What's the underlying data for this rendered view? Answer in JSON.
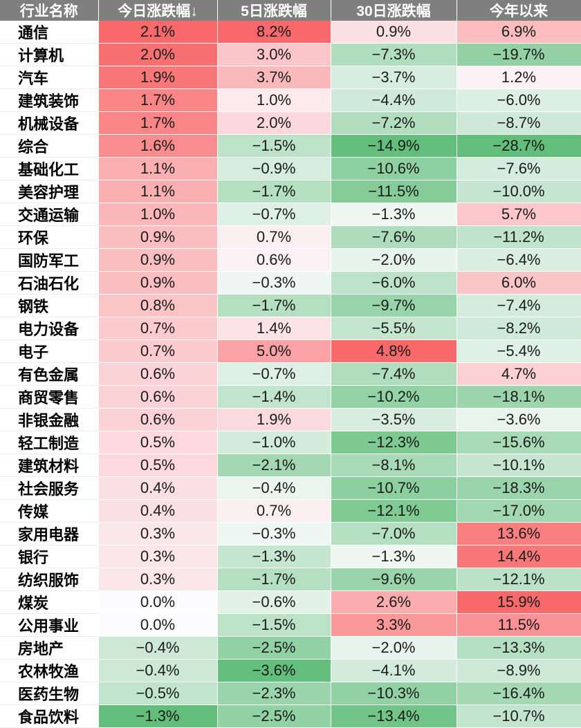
{
  "chart_data": {
    "type": "table",
    "columns": [
      "行业名称",
      "今日涨跌幅↓",
      "5日涨跌幅",
      "30日涨跌幅",
      "今年以来"
    ],
    "colors": {
      "positive": "#f8696b",
      "neutral": "#fcfcff",
      "negative": "#63be7b"
    },
    "rows": [
      {
        "name": "通信",
        "values": [
          "2.1%",
          "8.2%",
          "0.9%",
          "6.9%"
        ]
      },
      {
        "name": "计算机",
        "values": [
          "2.0%",
          "3.0%",
          "−7.3%",
          "−19.7%"
        ]
      },
      {
        "name": "汽车",
        "values": [
          "1.9%",
          "3.7%",
          "−3.7%",
          "1.2%"
        ]
      },
      {
        "name": "建筑装饰",
        "values": [
          "1.7%",
          "1.0%",
          "−4.4%",
          "−6.0%"
        ]
      },
      {
        "name": "机械设备",
        "values": [
          "1.7%",
          "2.0%",
          "−7.2%",
          "−8.7%"
        ]
      },
      {
        "name": "综合",
        "values": [
          "1.6%",
          "−1.5%",
          "−14.9%",
          "−28.7%"
        ]
      },
      {
        "name": "基础化工",
        "values": [
          "1.1%",
          "−0.9%",
          "−10.6%",
          "−7.6%"
        ]
      },
      {
        "name": "美容护理",
        "values": [
          "1.1%",
          "−1.7%",
          "−11.5%",
          "−10.0%"
        ]
      },
      {
        "name": "交通运输",
        "values": [
          "1.0%",
          "−0.7%",
          "−1.3%",
          "5.7%"
        ]
      },
      {
        "name": "环保",
        "values": [
          "0.9%",
          "0.7%",
          "−7.6%",
          "−11.2%"
        ]
      },
      {
        "name": "国防军工",
        "values": [
          "0.9%",
          "0.6%",
          "−2.0%",
          "−6.4%"
        ]
      },
      {
        "name": "石油石化",
        "values": [
          "0.9%",
          "−0.3%",
          "−6.0%",
          "6.0%"
        ]
      },
      {
        "name": "钢铁",
        "values": [
          "0.8%",
          "−1.7%",
          "−9.7%",
          "−7.4%"
        ]
      },
      {
        "name": "电力设备",
        "values": [
          "0.7%",
          "1.4%",
          "−5.5%",
          "−8.2%"
        ]
      },
      {
        "name": "电子",
        "values": [
          "0.7%",
          "5.0%",
          "4.8%",
          "−5.4%"
        ]
      },
      {
        "name": "有色金属",
        "values": [
          "0.6%",
          "−0.7%",
          "−7.4%",
          "4.7%"
        ]
      },
      {
        "name": "商贸零售",
        "values": [
          "0.6%",
          "−1.4%",
          "−10.2%",
          "−18.1%"
        ]
      },
      {
        "name": "非银金融",
        "values": [
          "0.6%",
          "1.9%",
          "−3.5%",
          "−3.6%"
        ]
      },
      {
        "name": "轻工制造",
        "values": [
          "0.5%",
          "−1.0%",
          "−12.3%",
          "−15.6%"
        ]
      },
      {
        "name": "建筑材料",
        "values": [
          "0.5%",
          "−2.1%",
          "−8.1%",
          "−10.1%"
        ]
      },
      {
        "name": "社会服务",
        "values": [
          "0.4%",
          "−0.4%",
          "−10.7%",
          "−18.3%"
        ]
      },
      {
        "name": "传媒",
        "values": [
          "0.4%",
          "0.7%",
          "−12.1%",
          "−17.0%"
        ]
      },
      {
        "name": "家用电器",
        "values": [
          "0.3%",
          "−0.3%",
          "−7.0%",
          "13.6%"
        ]
      },
      {
        "name": "银行",
        "values": [
          "0.3%",
          "−1.3%",
          "−1.3%",
          "14.4%"
        ]
      },
      {
        "name": "纺织服饰",
        "values": [
          "0.3%",
          "−1.7%",
          "−9.6%",
          "−12.1%"
        ]
      },
      {
        "name": "煤炭",
        "values": [
          "0.0%",
          "−0.6%",
          "2.6%",
          "15.9%"
        ]
      },
      {
        "name": "公用事业",
        "values": [
          "0.0%",
          "−1.5%",
          "3.3%",
          "11.5%"
        ]
      },
      {
        "name": "房地产",
        "values": [
          "−0.4%",
          "−2.5%",
          "−2.0%",
          "−13.3%"
        ]
      },
      {
        "name": "农林牧渔",
        "values": [
          "−0.4%",
          "−3.6%",
          "−4.1%",
          "−8.9%"
        ]
      },
      {
        "name": "医药生物",
        "values": [
          "−0.5%",
          "−2.3%",
          "−10.3%",
          "−16.4%"
        ]
      },
      {
        "name": "食品饮料",
        "values": [
          "−1.3%",
          "−2.5%",
          "−13.4%",
          "−10.7%"
        ]
      }
    ]
  }
}
